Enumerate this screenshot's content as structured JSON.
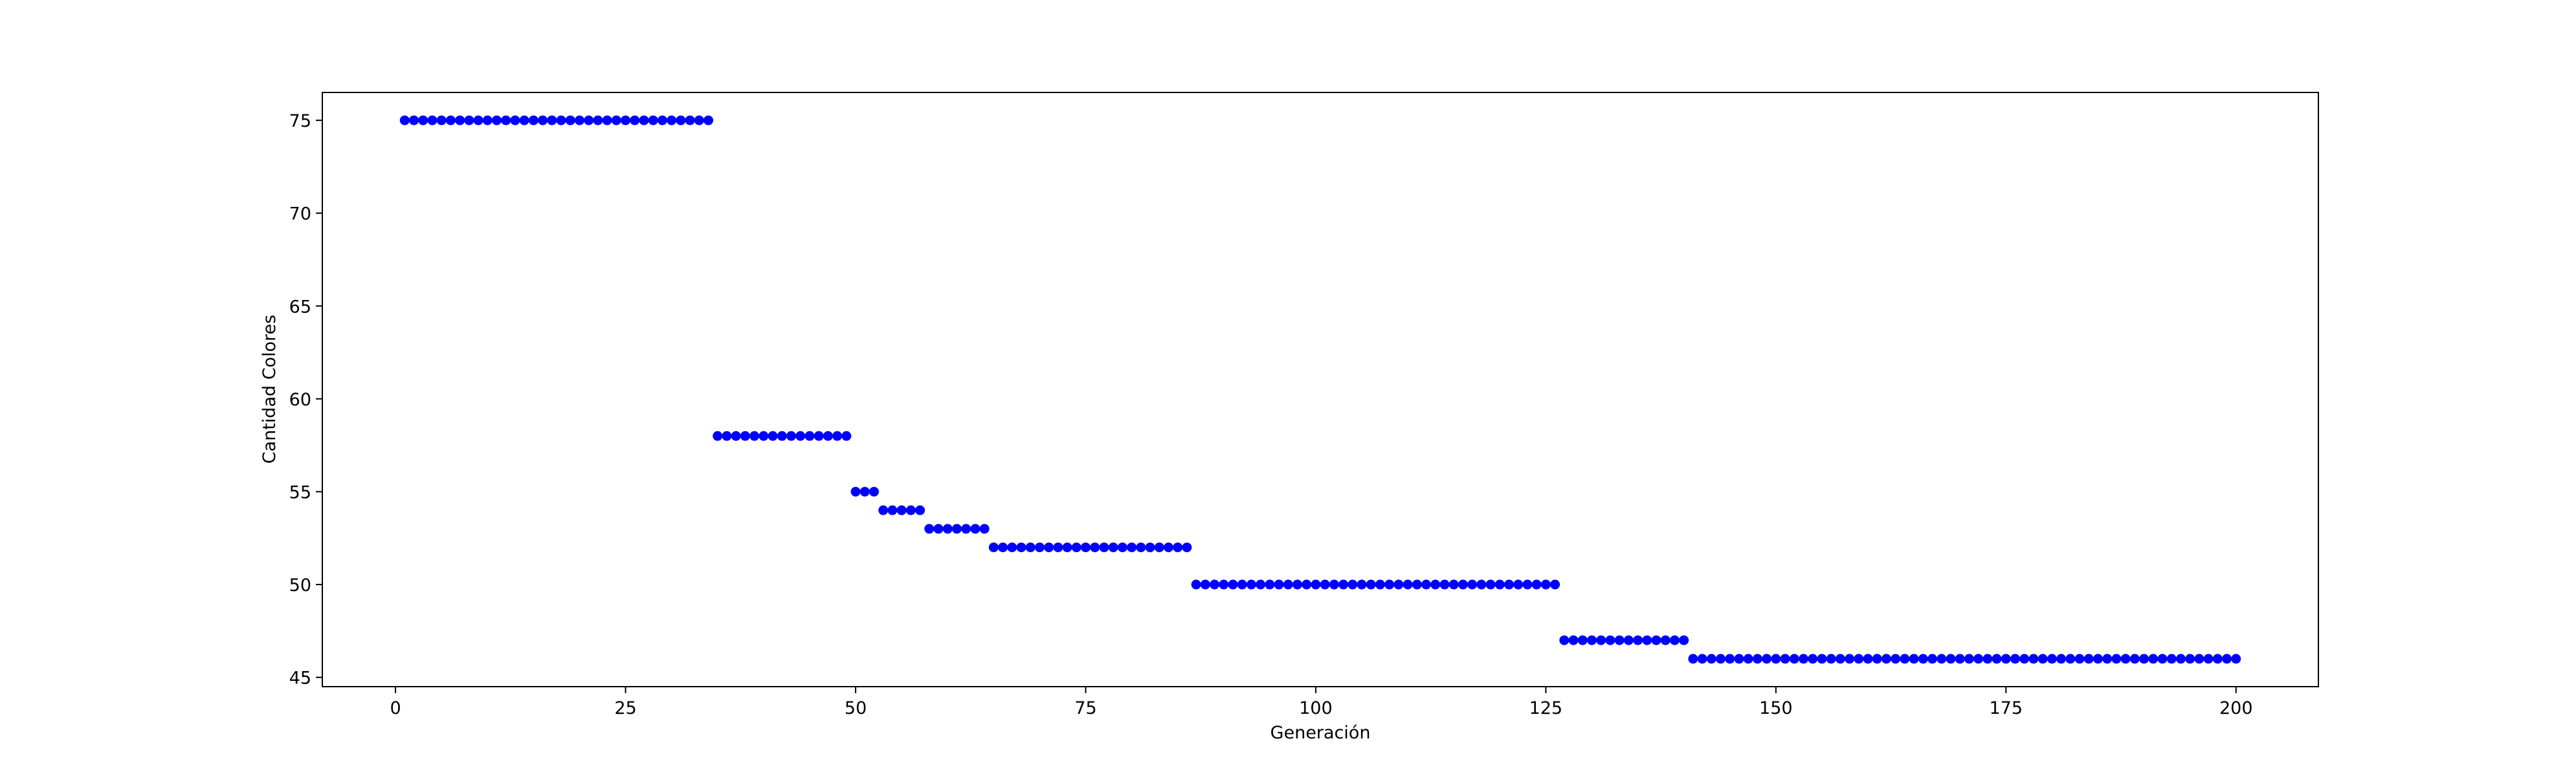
{
  "chart_data": {
    "type": "scatter",
    "title": "",
    "xlabel": "Generación",
    "ylabel": "Cantidad Colores",
    "xlim": [
      -7.95,
      208.95
    ],
    "ylim": [
      44.5,
      76.5
    ],
    "xticks": [
      0,
      25,
      50,
      75,
      100,
      125,
      150,
      175,
      200
    ],
    "yticks": [
      45,
      50,
      55,
      60,
      65,
      70,
      75
    ],
    "grid": false,
    "legend": "none",
    "marker_color": "#0000ff",
    "series": [
      {
        "marker": "circle",
        "segments": [
          {
            "x_start": 1,
            "x_end": 34,
            "y": 75
          },
          {
            "x_start": 35,
            "x_end": 49,
            "y": 58
          },
          {
            "x_start": 50,
            "x_end": 52,
            "y": 55
          },
          {
            "x_start": 53,
            "x_end": 57,
            "y": 54
          },
          {
            "x_start": 58,
            "x_end": 64,
            "y": 53
          },
          {
            "x_start": 65,
            "x_end": 86,
            "y": 52
          },
          {
            "x_start": 87,
            "x_end": 126,
            "y": 50
          },
          {
            "x_start": 127,
            "x_end": 140,
            "y": 47
          },
          {
            "x_start": 141,
            "x_end": 200,
            "y": 46
          }
        ]
      }
    ]
  }
}
